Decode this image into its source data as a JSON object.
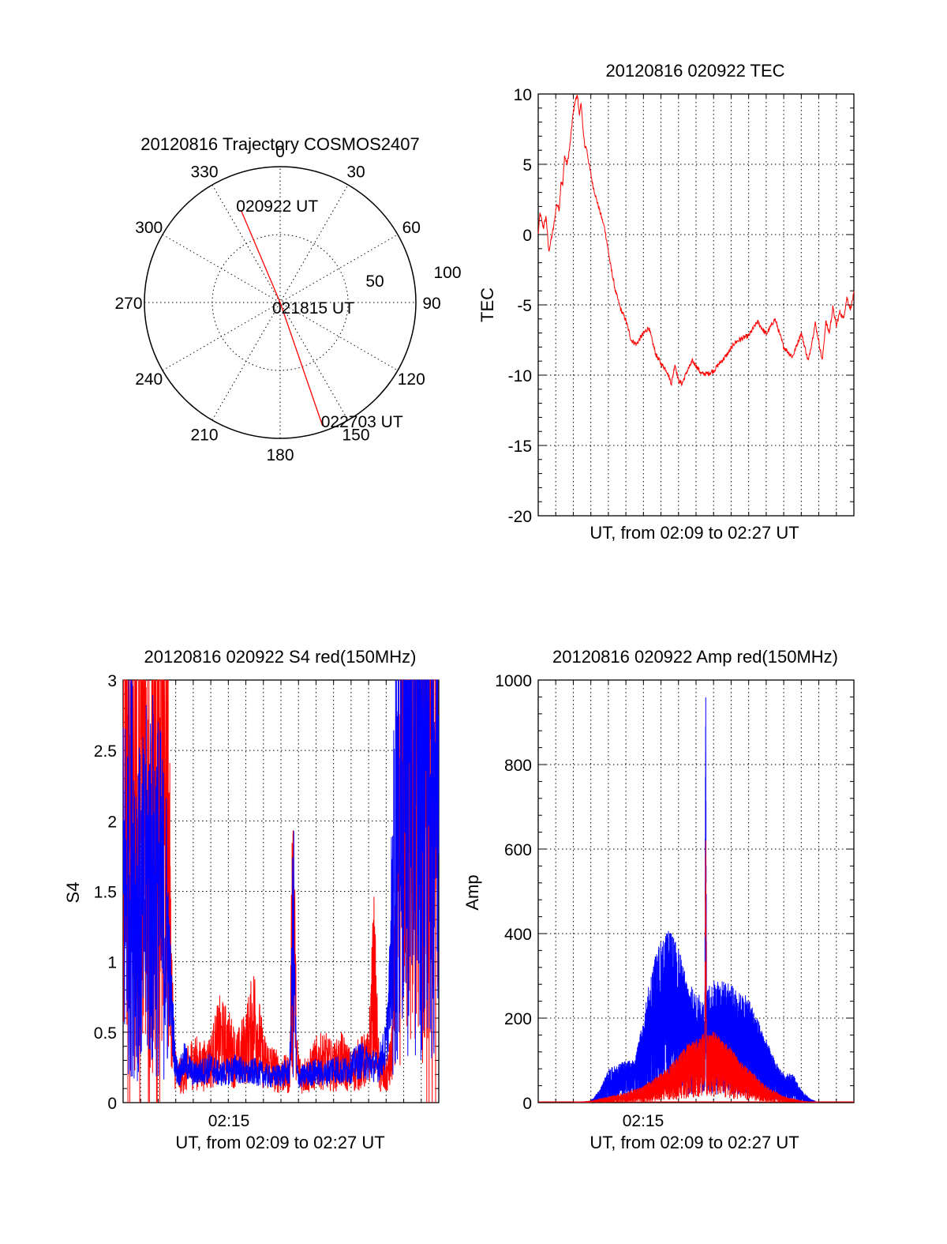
{
  "colors": {
    "red": "#ff0000",
    "blue": "#0000ff",
    "axis": "#000000",
    "background": "#ffffff"
  },
  "chart_data": [
    {
      "type": "polar",
      "title": "20120816 Trajectory COSMOS2407",
      "angle_labels": [
        "0",
        "30",
        "60",
        "90",
        "120",
        "150",
        "180",
        "210",
        "240",
        "270",
        "300",
        "330"
      ],
      "radial_labels": [
        "50",
        "100"
      ],
      "trajectory": {
        "color": "red",
        "points": [
          {
            "label": "020922 UT",
            "azimuth": 337,
            "zenith_deg": 74
          },
          {
            "label": "021815 UT",
            "azimuth": 0,
            "zenith_deg": 0
          },
          {
            "label": "022703 UT",
            "azimuth": 161,
            "zenith_deg": 96
          }
        ]
      }
    },
    {
      "type": "line",
      "title": "20120816 020922 TEC",
      "xlabel": "UT, from 02:09 to 02:27 UT",
      "ylabel": "TEC",
      "ylim": [
        -20,
        10
      ],
      "yticks": [
        "10",
        "5",
        "0",
        "-5",
        "-10",
        "-15",
        "-20"
      ],
      "xlim_min": [
        0,
        18
      ],
      "grid": true,
      "series": [
        {
          "color": "red",
          "x": [
            0,
            0.1,
            0.2,
            0.3,
            0.45,
            0.6,
            0.75,
            0.9,
            1.05,
            1.2,
            1.3,
            1.4,
            1.5,
            1.65,
            1.8,
            1.95,
            2.1,
            2.25,
            2.35,
            2.45,
            2.55,
            2.65,
            2.75,
            2.9,
            3.1,
            3.3,
            3.55,
            3.8,
            4.1,
            4.4,
            4.7,
            5.0,
            5.3,
            5.6,
            5.9,
            6.3,
            6.7,
            7.0,
            7.3,
            7.6,
            7.8,
            8.0,
            8.2,
            8.5,
            8.8,
            9.1,
            9.3,
            9.5,
            9.6,
            9.7,
            9.8,
            10.0,
            10.3,
            10.6,
            10.9,
            11.2,
            11.6,
            12.0,
            12.5,
            13.0,
            13.5,
            14.0,
            14.5,
            15.0,
            15.4,
            15.8,
            16.0,
            16.2,
            16.4,
            16.6,
            16.8,
            17.0,
            17.2,
            17.4,
            17.6,
            17.8,
            18.0
          ],
          "y": [
            0,
            1.5,
            1.0,
            0.5,
            1.3,
            -1.2,
            -0.3,
            0.7,
            2.2,
            1.8,
            3.8,
            3.5,
            5.6,
            5.0,
            6.2,
            8.2,
            9.5,
            9.9,
            8.3,
            9.5,
            7.5,
            6.3,
            6.2,
            5.0,
            3.6,
            2.6,
            1.5,
            0.4,
            -2.0,
            -4.0,
            -5.3,
            -6.1,
            -7.5,
            -7.8,
            -7.2,
            -6.6,
            -8.5,
            -9.2,
            -9.6,
            -10.6,
            -9.2,
            -10.4,
            -10.6,
            -9.7,
            -9.0,
            -9.5,
            -9.9,
            -9.9,
            -9.9,
            -9.9,
            -9.8,
            -9.7,
            -9.2,
            -8.8,
            -8.3,
            -7.7,
            -7.4,
            -7.2,
            -6.2,
            -7.1,
            -6.0,
            -8.0,
            -8.7,
            -7.0,
            -9.0,
            -6.3,
            -7.6,
            -9.0,
            -6.2,
            -7.0,
            -5.2,
            -6.5,
            -5.5,
            -6.0,
            -4.5,
            -5.3,
            -4.2
          ]
        }
      ]
    },
    {
      "type": "line",
      "title": "20120816 020922 S4 red(150MHz)",
      "xlabel": "UT, from 02:09 to 02:27 UT",
      "ylabel": "S4",
      "ylim": [
        0,
        3
      ],
      "yticks": [
        "0",
        "0.5",
        "1",
        "1.5",
        "2",
        "2.5",
        "3"
      ],
      "xtick_label": "02:15",
      "xlim_min": [
        0,
        18
      ],
      "grid": true,
      "series": [
        {
          "color": "red",
          "description_of_shape": "high noisy values 0-3 from 02:09 to ~02:11.5, then ~0.15-0.5 with spikes (max ~1.55 near 02:18.5), rising to 3 after ~02:24.5",
          "x": [
            0,
            0.5,
            1.0,
            1.5,
            2.0,
            2.5,
            2.7,
            2.9,
            3.1,
            3.5,
            4.0,
            4.5,
            5.0,
            5.5,
            6.0,
            6.5,
            7.0,
            7.5,
            8.0,
            8.5,
            9.0,
            9.5,
            9.7,
            9.9,
            10.1,
            10.5,
            11.0,
            11.5,
            12.0,
            12.5,
            13.0,
            13.5,
            14.0,
            14.3,
            14.6,
            15.0,
            15.3,
            15.6,
            16.0,
            16.5,
            17.0,
            17.5,
            18.0
          ],
          "y": [
            3.0,
            1.8,
            3.0,
            1.2,
            3.0,
            2.5,
            1.0,
            0.35,
            0.18,
            0.2,
            0.3,
            0.25,
            0.3,
            0.45,
            0.4,
            0.3,
            0.4,
            0.6,
            0.3,
            0.25,
            0.2,
            0.2,
            1.55,
            0.3,
            0.2,
            0.2,
            0.28,
            0.3,
            0.25,
            0.3,
            0.22,
            0.28,
            0.3,
            0.9,
            0.2,
            0.18,
            0.3,
            1.2,
            2.5,
            3.0,
            2.0,
            3.0,
            2.6
          ]
        },
        {
          "color": "blue",
          "x": [
            0,
            0.5,
            1.0,
            1.5,
            2.0,
            2.5,
            2.8,
            3.0,
            3.2,
            3.5,
            4.0,
            4.5,
            5.0,
            5.5,
            6.0,
            6.5,
            7.0,
            7.5,
            8.0,
            8.5,
            9.0,
            9.5,
            9.7,
            9.9,
            10.1,
            10.5,
            11.0,
            11.5,
            12.0,
            12.5,
            13.0,
            13.5,
            14.0,
            14.5,
            15.0,
            15.3,
            15.6,
            16.0,
            16.5,
            17.0,
            17.5,
            18.0
          ],
          "y": [
            1.5,
            1.7,
            1.3,
            1.6,
            1.5,
            1.2,
            0.6,
            0.25,
            0.2,
            0.3,
            0.2,
            0.22,
            0.25,
            0.2,
            0.22,
            0.25,
            0.2,
            0.22,
            0.2,
            0.18,
            0.2,
            0.22,
            1.2,
            0.2,
            0.18,
            0.2,
            0.22,
            0.2,
            0.25,
            0.22,
            0.25,
            0.3,
            0.28,
            0.25,
            0.4,
            1.0,
            2.0,
            2.6,
            3.0,
            2.8,
            2.9,
            2.3
          ]
        }
      ]
    },
    {
      "type": "line",
      "title": "20120816 020922 Amp red(150MHz)",
      "xlabel": "UT, from 02:09 to 02:27 UT",
      "ylabel": "Amp",
      "ylim": [
        0,
        1000
      ],
      "yticks": [
        "0",
        "200",
        "400",
        "600",
        "800",
        "1000"
      ],
      "xtick_label": "02:15",
      "xlim_min": [
        0,
        18
      ],
      "grid": true,
      "series": [
        {
          "color": "red",
          "x": [
            0,
            2,
            3,
            4,
            5,
            6,
            7,
            8,
            8.5,
            9,
            9.5,
            9.55,
            9.6,
            10,
            10.5,
            11,
            11.5,
            12,
            13,
            14,
            15,
            16,
            18
          ],
          "y": [
            0,
            0,
            2,
            5,
            10,
            20,
            40,
            70,
            90,
            100,
            120,
            640,
            110,
            130,
            110,
            90,
            70,
            50,
            20,
            8,
            3,
            0,
            0
          ],
          "envelope_max": [
            0,
            0,
            5,
            15,
            25,
            40,
            70,
            110,
            140,
            150,
            170,
            640,
            160,
            170,
            150,
            130,
            100,
            80,
            40,
            15,
            5,
            0,
            0
          ]
        },
        {
          "color": "blue",
          "x": [
            0,
            2,
            3,
            3.5,
            4,
            5,
            5.5,
            6,
            6.5,
            7,
            7.5,
            8,
            8.5,
            9,
            9.5,
            9.55,
            9.6,
            10,
            10.5,
            11,
            11.5,
            12,
            12.5,
            13,
            13.5,
            14,
            14.5,
            15,
            15.5,
            16,
            18
          ],
          "y": [
            0,
            0,
            2,
            15,
            40,
            60,
            80,
            100,
            150,
            200,
            240,
            220,
            180,
            160,
            150,
            990,
            140,
            180,
            200,
            180,
            170,
            160,
            130,
            100,
            60,
            40,
            30,
            15,
            5,
            0,
            0
          ],
          "envelope_max": [
            0,
            0,
            5,
            30,
            80,
            100,
            100,
            200,
            330,
            390,
            410,
            370,
            290,
            260,
            250,
            990,
            270,
            290,
            290,
            280,
            260,
            250,
            200,
            150,
            100,
            70,
            70,
            30,
            10,
            0,
            0
          ]
        }
      ]
    }
  ]
}
